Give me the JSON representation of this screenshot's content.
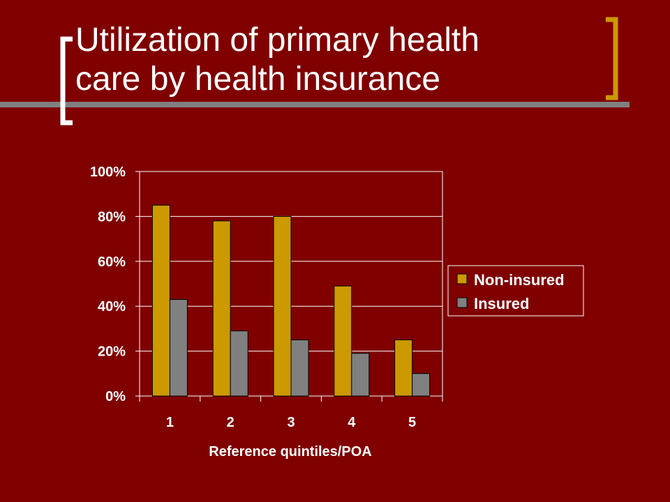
{
  "slide": {
    "title_line1": "Utilization of primary health",
    "title_line2": "care by health insurance"
  },
  "colors": {
    "background": "#800000",
    "accent": "#CC9900",
    "bracket_left": "#FFFFFF",
    "bracket_right": "#CC9900",
    "rule": "#808080",
    "series_non_insured": "#CC9900",
    "series_insured": "#808080"
  },
  "chart_data": {
    "type": "bar",
    "categories": [
      "1",
      "2",
      "3",
      "4",
      "5"
    ],
    "series": [
      {
        "name": "Non-insured",
        "values": [
          85,
          78,
          80,
          49,
          25
        ]
      },
      {
        "name": "Insured",
        "values": [
          43,
          29,
          25,
          19,
          10
        ]
      }
    ],
    "xlabel": "Reference quintiles/POA",
    "ylabel": "",
    "ylim": [
      0,
      100
    ],
    "yticks": [
      "0%",
      "20%",
      "40%",
      "60%",
      "80%",
      "100%"
    ],
    "grid": true,
    "legend": "right"
  }
}
